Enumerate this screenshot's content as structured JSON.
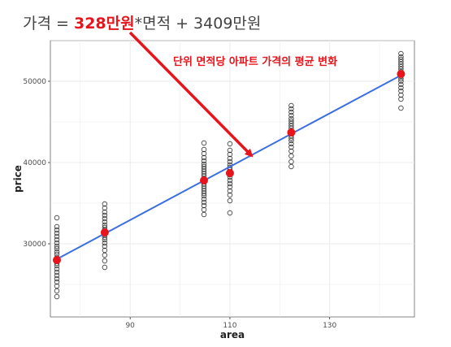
{
  "equation": {
    "prefix": "가격 = ",
    "coef": "328만원",
    "suffix": "*면적 + 3409만원"
  },
  "colors": {
    "accent_red": "#e8141c",
    "line_blue": "#3b6fe0",
    "panel_grid": "#ebebeb",
    "point_stroke": "#333333"
  },
  "chart_data": {
    "type": "scatter",
    "title": "",
    "xlabel": "area",
    "ylabel": "price",
    "xlim": [
      74,
      147
    ],
    "ylim": [
      21000,
      55000
    ],
    "x_ticks": [
      90,
      110,
      130
    ],
    "y_ticks": [
      30000,
      40000,
      50000
    ],
    "grid": true,
    "regression": {
      "slope": 328,
      "intercept": 3409
    },
    "annotation": "단위 면적당 아파트 가격의 평균 변화",
    "groups": [
      {
        "x": 75.3,
        "mean": 28000,
        "values": [
          23500,
          24200,
          24800,
          25300,
          25700,
          26100,
          26500,
          26900,
          27300,
          27600,
          28000,
          28300,
          28700,
          29000,
          29400,
          29700,
          30100,
          30500,
          30900,
          31300,
          31700,
          32100,
          33200
        ]
      },
      {
        "x": 84.9,
        "mean": 31400,
        "values": [
          27100,
          27900,
          28600,
          29200,
          29700,
          30100,
          30500,
          30800,
          31100,
          31400,
          31700,
          32000,
          32300,
          32700,
          33100,
          33500,
          33900,
          34400,
          34900
        ]
      },
      {
        "x": 104.8,
        "mean": 37800,
        "values": [
          33600,
          34200,
          34700,
          35100,
          35500,
          35900,
          36200,
          36500,
          36800,
          37100,
          37400,
          37700,
          38000,
          38300,
          38600,
          38900,
          39200,
          39500,
          39800,
          40200,
          40600,
          41100,
          41600,
          42400
        ]
      },
      {
        "x": 110.0,
        "mean": 38700,
        "values": [
          33800,
          35300,
          36000,
          36500,
          37000,
          37400,
          37800,
          38200,
          38500,
          38800,
          39100,
          39400,
          39700,
          40100,
          40500,
          41000,
          41500,
          42300
        ]
      },
      {
        "x": 122.3,
        "mean": 43700,
        "values": [
          39500,
          40100,
          40800,
          41400,
          41900,
          42300,
          42700,
          43000,
          43300,
          43600,
          43900,
          44200,
          44500,
          44800,
          45100,
          45400,
          45800,
          46200,
          46600,
          47000
        ]
      },
      {
        "x": 144.3,
        "mean": 50900,
        "values": [
          46700,
          47800,
          48300,
          48800,
          49200,
          49600,
          50000,
          50300,
          50600,
          50900,
          51200,
          51500,
          51800,
          52100,
          52400,
          52700,
          53000,
          53400
        ]
      }
    ]
  }
}
